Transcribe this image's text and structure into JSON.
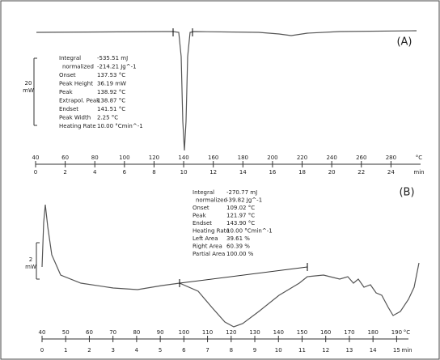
{
  "panels": [
    {
      "label": "(A)",
      "scale_bar": {
        "value": "20",
        "unit": "mW"
      },
      "results": [
        {
          "name": "Integral",
          "value": "-535.51 mJ"
        },
        {
          "name": "normalized",
          "value": "-214.21 Jg^-1"
        },
        {
          "name": "Onset",
          "value": "137.53 °C"
        },
        {
          "name": "Peak Height",
          "value": "36.19 mW"
        },
        {
          "name": "Peak",
          "value": "138.92 °C"
        },
        {
          "name": "Extrapol. Peak",
          "value": "138.87 °C"
        },
        {
          "name": "Endset",
          "value": "141.51 °C"
        },
        {
          "name": "Peak Width",
          "value": "2.25 °C"
        },
        {
          "name": "Heating Rate",
          "value": "10.00 °Cmin^-1"
        }
      ],
      "temperature_axis": {
        "lim": [
          40,
          300
        ],
        "ticks": [
          40,
          60,
          80,
          100,
          120,
          140,
          160,
          180,
          200,
          220,
          240,
          260,
          280
        ],
        "unit": "°C"
      },
      "time_axis": {
        "lim": [
          0,
          26
        ],
        "ticks": [
          0,
          2,
          4,
          6,
          8,
          10,
          12,
          14,
          16,
          18,
          20,
          22,
          24
        ],
        "unit": "min"
      }
    },
    {
      "label": "(B)",
      "scale_bar": {
        "value": "2",
        "unit": "mW"
      },
      "results": [
        {
          "name": "Integral",
          "value": "-270.77 mJ"
        },
        {
          "name": "normalized",
          "value": "-39.82 Jg^-1"
        },
        {
          "name": "Onset",
          "value": "109.02 °C"
        },
        {
          "name": "Peak",
          "value": "121.97 °C"
        },
        {
          "name": "Endset",
          "value": "143.90 °C"
        },
        {
          "name": "Heating Rate",
          "value": "10.00 °Cmin^-1"
        },
        {
          "name": "Left Area",
          "value": "39.61 %"
        },
        {
          "name": "Right Area",
          "value": "60.39 %"
        },
        {
          "name": "Partial Area",
          "value": "100.00 %"
        }
      ],
      "temperature_axis": {
        "lim": [
          40,
          195
        ],
        "ticks": [
          40,
          50,
          60,
          70,
          80,
          90,
          100,
          110,
          120,
          130,
          140,
          150,
          160,
          170,
          180,
          190
        ],
        "unit": "°C"
      },
      "time_axis": {
        "lim": [
          0,
          15.5
        ],
        "ticks": [
          0,
          1,
          2,
          3,
          4,
          5,
          6,
          7,
          8,
          9,
          10,
          11,
          12,
          13,
          14,
          15
        ],
        "unit": "min"
      }
    }
  ]
}
